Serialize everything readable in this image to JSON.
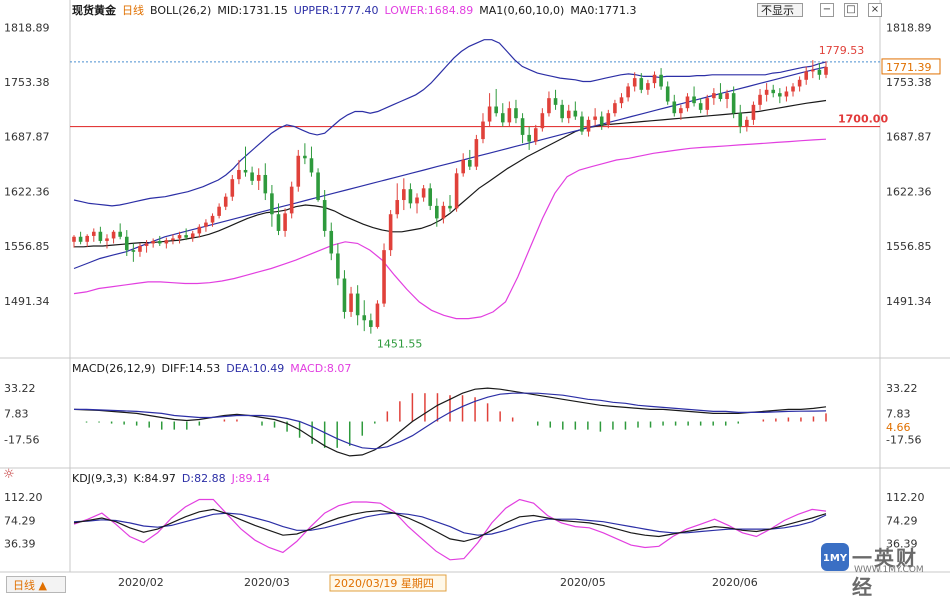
{
  "header": {
    "instrument": "现货黄金",
    "timeframe": "日线",
    "boll_label": "BOLL(26,2)",
    "mid": "MID:1731.15",
    "upper": "UPPER:1777.40",
    "lower": "LOWER:1684.89",
    "ma_label": "MA1(0,60,10,0)",
    "ma_value": "MA0:1771.3",
    "not_show": "不显示",
    "win_buttons": [
      "−",
      "□",
      "×"
    ]
  },
  "macd_header": {
    "label": "MACD(26,12,9)",
    "diff": "DIFF:14.53",
    "dea": "DEA:10.49",
    "macd": "MACD:8.07"
  },
  "kdj_header": {
    "label": "KDJ(9,3,3)",
    "k": "K:84.97",
    "d": "D:82.88",
    "j": "J:89.14"
  },
  "price_axis": {
    "ticks": [
      1818.89,
      1753.38,
      1687.87,
      1622.36,
      1556.85,
      1491.34
    ],
    "labels": [
      "1818.89",
      "1753.38",
      "1687.87",
      "1622.36",
      "1556.85",
      "1491.34"
    ]
  },
  "macd_axis": {
    "ticks": [
      33.22,
      7.83,
      -17.56
    ],
    "labels": [
      "33.22",
      "7.83",
      "-17.56"
    ],
    "value_tag": "4.66"
  },
  "kdj_axis": {
    "ticks": [
      112.2,
      74.29,
      36.39
    ],
    "labels": [
      "112.20",
      "74.29",
      "36.39"
    ],
    "value_tag": "36.39"
  },
  "annotations": {
    "high": "1779.53",
    "low": "1451.55",
    "support": "1700.00",
    "last_price": "1771.39"
  },
  "xaxis": {
    "labels": [
      "2020/02",
      "2020/03",
      "2020/05",
      "2020/06"
    ],
    "cursor_date": "2020/03/19 星期四"
  },
  "bottom_tab": {
    "label": "日线 ▲"
  },
  "logo": {
    "main": "一英财经",
    "sub": "WWW.1MY.COM",
    "badge": "1MY"
  },
  "colors": {
    "up": "#e0413a",
    "down": "#2e9a3c",
    "upper_band": "#2c2fa6",
    "lower_band": "#e23fe0",
    "mid_band": "#1a1a1a",
    "ma": "#2c2fa6",
    "support": "#e23a3a",
    "diff": "#1a1a1a",
    "dea": "#2c2fa6",
    "k": "#1a1a1a",
    "d": "#2c2fa6",
    "j": "#e23fe0"
  },
  "chart_data": {
    "type": "candlestick",
    "title": "现货黄金 日线",
    "ylim": [
      1430,
      1830
    ],
    "candles": [
      [
        1562,
        1570,
        1555,
        1568
      ],
      [
        1568,
        1574,
        1559,
        1562
      ],
      [
        1562,
        1571,
        1556,
        1569
      ],
      [
        1569,
        1578,
        1562,
        1574
      ],
      [
        1574,
        1580,
        1560,
        1563
      ],
      [
        1563,
        1571,
        1554,
        1566
      ],
      [
        1566,
        1576,
        1560,
        1574
      ],
      [
        1574,
        1584,
        1565,
        1568
      ],
      [
        1568,
        1576,
        1545,
        1552
      ],
      [
        1552,
        1560,
        1538,
        1550
      ],
      [
        1550,
        1560,
        1544,
        1557
      ],
      [
        1557,
        1564,
        1549,
        1560
      ],
      [
        1560,
        1566,
        1555,
        1563
      ],
      [
        1563,
        1569,
        1557,
        1560
      ],
      [
        1560,
        1567,
        1554,
        1564
      ],
      [
        1564,
        1571,
        1559,
        1566
      ],
      [
        1566,
        1574,
        1560,
        1570
      ],
      [
        1570,
        1578,
        1564,
        1567
      ],
      [
        1567,
        1575,
        1562,
        1572
      ],
      [
        1572,
        1583,
        1567,
        1580
      ],
      [
        1580,
        1589,
        1574,
        1585
      ],
      [
        1585,
        1596,
        1580,
        1593
      ],
      [
        1593,
        1608,
        1590,
        1604
      ],
      [
        1604,
        1620,
        1600,
        1616
      ],
      [
        1616,
        1642,
        1611,
        1637
      ],
      [
        1637,
        1660,
        1631,
        1648
      ],
      [
        1648,
        1676,
        1640,
        1645
      ],
      [
        1645,
        1652,
        1630,
        1635
      ],
      [
        1635,
        1650,
        1624,
        1642
      ],
      [
        1642,
        1656,
        1612,
        1620
      ],
      [
        1620,
        1630,
        1580,
        1595
      ],
      [
        1595,
        1608,
        1570,
        1575
      ],
      [
        1575,
        1602,
        1568,
        1596
      ],
      [
        1596,
        1634,
        1590,
        1628
      ],
      [
        1628,
        1672,
        1622,
        1665
      ],
      [
        1665,
        1680,
        1655,
        1662
      ],
      [
        1662,
        1676,
        1640,
        1645
      ],
      [
        1645,
        1650,
        1610,
        1612
      ],
      [
        1612,
        1624,
        1568,
        1575
      ],
      [
        1575,
        1585,
        1540,
        1548
      ],
      [
        1548,
        1560,
        1510,
        1518
      ],
      [
        1518,
        1528,
        1470,
        1478
      ],
      [
        1478,
        1508,
        1472,
        1500
      ],
      [
        1500,
        1510,
        1462,
        1474
      ],
      [
        1474,
        1492,
        1455,
        1468
      ],
      [
        1468,
        1476,
        1452,
        1460
      ],
      [
        1460,
        1492,
        1458,
        1488
      ],
      [
        1488,
        1560,
        1484,
        1552
      ],
      [
        1552,
        1600,
        1545,
        1595
      ],
      [
        1595,
        1632,
        1590,
        1612
      ],
      [
        1612,
        1638,
        1600,
        1625
      ],
      [
        1625,
        1632,
        1602,
        1608
      ],
      [
        1608,
        1620,
        1596,
        1615
      ],
      [
        1615,
        1630,
        1610,
        1626
      ],
      [
        1626,
        1632,
        1600,
        1605
      ],
      [
        1605,
        1614,
        1580,
        1590
      ],
      [
        1590,
        1610,
        1584,
        1605
      ],
      [
        1605,
        1618,
        1598,
        1602
      ],
      [
        1602,
        1650,
        1598,
        1644
      ],
      [
        1644,
        1668,
        1640,
        1660
      ],
      [
        1660,
        1672,
        1648,
        1652
      ],
      [
        1652,
        1690,
        1648,
        1685
      ],
      [
        1685,
        1716,
        1680,
        1706
      ],
      [
        1706,
        1740,
        1700,
        1724
      ],
      [
        1724,
        1745,
        1712,
        1716
      ],
      [
        1716,
        1728,
        1700,
        1705
      ],
      [
        1705,
        1730,
        1700,
        1722
      ],
      [
        1722,
        1732,
        1704,
        1710
      ],
      [
        1710,
        1716,
        1680,
        1690
      ],
      [
        1690,
        1700,
        1672,
        1682
      ],
      [
        1682,
        1702,
        1678,
        1698
      ],
      [
        1698,
        1722,
        1694,
        1716
      ],
      [
        1716,
        1742,
        1712,
        1734
      ],
      [
        1734,
        1744,
        1720,
        1726
      ],
      [
        1726,
        1732,
        1705,
        1710
      ],
      [
        1710,
        1726,
        1704,
        1719
      ],
      [
        1719,
        1730,
        1708,
        1712
      ],
      [
        1712,
        1718,
        1690,
        1694
      ],
      [
        1694,
        1712,
        1688,
        1708
      ],
      [
        1708,
        1722,
        1701,
        1712
      ],
      [
        1712,
        1718,
        1696,
        1702
      ],
      [
        1702,
        1720,
        1698,
        1716
      ],
      [
        1716,
        1732,
        1712,
        1728
      ],
      [
        1728,
        1740,
        1722,
        1735
      ],
      [
        1735,
        1752,
        1730,
        1748
      ],
      [
        1748,
        1765,
        1742,
        1758
      ],
      [
        1758,
        1764,
        1740,
        1744
      ],
      [
        1744,
        1756,
        1738,
        1752
      ],
      [
        1752,
        1766,
        1746,
        1762
      ],
      [
        1762,
        1770,
        1744,
        1748
      ],
      [
        1748,
        1754,
        1726,
        1730
      ],
      [
        1730,
        1738,
        1712,
        1716
      ],
      [
        1716,
        1726,
        1708,
        1722
      ],
      [
        1722,
        1740,
        1718,
        1736
      ],
      [
        1736,
        1748,
        1724,
        1728
      ],
      [
        1728,
        1734,
        1716,
        1720
      ],
      [
        1720,
        1738,
        1714,
        1734
      ],
      [
        1734,
        1746,
        1726,
        1740
      ],
      [
        1740,
        1752,
        1730,
        1733
      ],
      [
        1733,
        1744,
        1722,
        1740
      ],
      [
        1740,
        1748,
        1710,
        1716
      ],
      [
        1716,
        1726,
        1692,
        1700
      ],
      [
        1700,
        1712,
        1694,
        1708
      ],
      [
        1708,
        1730,
        1702,
        1726
      ],
      [
        1726,
        1745,
        1720,
        1738
      ],
      [
        1738,
        1752,
        1730,
        1744
      ],
      [
        1744,
        1750,
        1735,
        1740
      ],
      [
        1740,
        1746,
        1728,
        1736
      ],
      [
        1736,
        1748,
        1730,
        1742
      ],
      [
        1742,
        1752,
        1736,
        1748
      ],
      [
        1748,
        1760,
        1742,
        1756
      ],
      [
        1756,
        1772,
        1750,
        1766
      ],
      [
        1766,
        1779.53,
        1758,
        1768
      ],
      [
        1768,
        1776,
        1756,
        1762
      ],
      [
        1762,
        1778,
        1758,
        1771.39
      ]
    ],
    "upper_band": [
      1612,
      1610,
      1608,
      1607,
      1606,
      1605,
      1606,
      1608,
      1610,
      1612,
      1614,
      1615,
      1616,
      1618,
      1620,
      1622,
      1625,
      1628,
      1632,
      1636,
      1642,
      1650,
      1660,
      1668,
      1676,
      1684,
      1692,
      1698,
      1702,
      1700,
      1696,
      1692,
      1690,
      1692,
      1700,
      1708,
      1714,
      1718,
      1718,
      1716,
      1718,
      1722,
      1726,
      1730,
      1734,
      1738,
      1744,
      1752,
      1762,
      1772,
      1782,
      1790,
      1796,
      1800,
      1804,
      1804,
      1800,
      1790,
      1780,
      1772,
      1768,
      1764,
      1762,
      1760,
      1758,
      1757,
      1756,
      1754,
      1754,
      1756,
      1758,
      1760,
      1762,
      1763,
      1762,
      1760,
      1760,
      1759,
      1760,
      1760,
      1760,
      1760,
      1761,
      1761,
      1762,
      1762,
      1762,
      1762,
      1762,
      1762,
      1762,
      1762,
      1764,
      1765,
      1767,
      1769,
      1771,
      1772,
      1775,
      1777.4
    ],
    "mid_band": [
      1556,
      1556,
      1557,
      1557,
      1558,
      1559,
      1560,
      1561,
      1561,
      1562,
      1563,
      1564,
      1566,
      1568,
      1571,
      1575,
      1580,
      1585,
      1590,
      1594,
      1597,
      1598,
      1600,
      1604,
      1606,
      1605,
      1603,
      1599,
      1593,
      1588,
      1583,
      1579,
      1576,
      1574,
      1574,
      1576,
      1578,
      1582,
      1588,
      1596,
      1606,
      1616,
      1626,
      1634,
      1642,
      1650,
      1657,
      1664,
      1670,
      1676,
      1682,
      1688,
      1694,
      1698,
      1700,
      1702,
      1703,
      1704,
      1705,
      1706,
      1707,
      1708,
      1709,
      1710,
      1711,
      1712,
      1713,
      1714,
      1715,
      1716,
      1717,
      1718,
      1720,
      1722,
      1724,
      1726,
      1728,
      1729.5,
      1731.15
    ],
    "lower_band": [
      1500,
      1502,
      1506,
      1508,
      1510,
      1512,
      1514,
      1514,
      1513,
      1512,
      1512,
      1513,
      1515,
      1518,
      1522,
      1526,
      1530,
      1535,
      1540,
      1546,
      1552,
      1558,
      1562,
      1560,
      1552,
      1540,
      1522,
      1505,
      1490,
      1480,
      1474,
      1470,
      1470,
      1472,
      1478,
      1490,
      1520,
      1555,
      1590,
      1620,
      1640,
      1648,
      1652,
      1656,
      1660,
      1662,
      1665,
      1668,
      1670,
      1672,
      1674,
      1675,
      1676,
      1677,
      1678,
      1679,
      1680,
      1681,
      1682,
      1683,
      1684,
      1684.89
    ],
    "ma_line": [
      1530,
      1536,
      1542,
      1546,
      1550,
      1556,
      1562,
      1568,
      1572,
      1576,
      1580,
      1584,
      1588,
      1592,
      1596,
      1600,
      1604,
      1608,
      1612,
      1616,
      1620,
      1624,
      1628,
      1632,
      1636,
      1640,
      1644,
      1648,
      1652,
      1656,
      1660,
      1664,
      1668,
      1672,
      1676,
      1680,
      1684,
      1688,
      1692,
      1696,
      1700,
      1704,
      1708,
      1712,
      1716,
      1720,
      1724,
      1728,
      1732,
      1736,
      1740,
      1744,
      1748,
      1752,
      1756,
      1760,
      1764,
      1768,
      1771.3
    ],
    "support_level": 1700.0,
    "macd": {
      "ylim": [
        -40,
        45
      ],
      "diff": [
        12,
        11.5,
        11,
        10,
        9,
        8,
        6,
        4,
        2,
        1,
        2,
        4,
        6,
        7,
        6,
        4,
        2,
        -2,
        -8,
        -16,
        -24,
        -30,
        -34,
        -33,
        -28,
        -20,
        -10,
        0,
        8,
        16,
        22,
        28,
        32,
        33,
        32,
        30,
        28,
        26,
        24,
        22,
        20,
        18,
        16,
        15,
        14,
        13,
        12,
        12,
        11,
        10,
        9,
        8,
        8,
        8,
        9,
        10,
        11,
        12,
        12,
        13,
        14.53
      ],
      "dea": [
        12,
        12,
        11.5,
        11,
        10.5,
        10,
        9,
        8,
        6,
        5,
        4,
        4,
        5,
        6,
        6,
        6,
        5,
        3,
        0,
        -5,
        -11,
        -17,
        -22,
        -26,
        -27,
        -25,
        -20,
        -14,
        -6,
        2,
        9,
        15,
        20,
        24,
        27,
        28,
        28,
        28,
        27,
        26,
        24,
        22,
        21,
        19,
        18,
        16,
        15,
        14,
        13,
        12,
        11,
        10,
        10,
        9,
        9,
        9,
        9.5,
        10,
        10.2,
        10.3,
        10.49
      ],
      "hist": [
        0,
        -1,
        -1,
        -2,
        -3,
        -4,
        -6,
        -8,
        -8,
        -8,
        -4,
        0,
        2,
        2,
        0,
        -4,
        -6,
        -10,
        -16,
        -22,
        -26,
        -26,
        -24,
        -14,
        -2,
        10,
        20,
        28,
        28,
        28,
        26,
        26,
        24,
        18,
        10,
        4,
        0,
        -4,
        -6,
        -8,
        -8,
        -8,
        -10,
        -8,
        -8,
        -6,
        -6,
        -4,
        -4,
        -4,
        -4,
        -4,
        -4,
        -2,
        0,
        2,
        3,
        4,
        4,
        5,
        8.07
      ]
    },
    "kdj": {
      "ylim": [
        0,
        130
      ],
      "k": [
        70,
        74,
        78,
        72,
        62,
        55,
        60,
        70,
        80,
        88,
        92,
        85,
        75,
        66,
        58,
        50,
        52,
        60,
        70,
        78,
        84,
        88,
        90,
        86,
        78,
        68,
        56,
        44,
        40,
        46,
        58,
        70,
        80,
        82,
        78,
        74,
        72,
        70,
        66,
        60,
        54,
        50,
        48,
        52,
        56,
        60,
        64,
        62,
        58,
        56,
        60,
        66,
        72,
        78,
        84.97
      ],
      "d": [
        72,
        73,
        75,
        74,
        70,
        65,
        63,
        66,
        72,
        78,
        84,
        86,
        84,
        78,
        72,
        64,
        58,
        58,
        62,
        68,
        74,
        80,
        84,
        86,
        84,
        80,
        72,
        64,
        54,
        50,
        52,
        58,
        66,
        72,
        76,
        76,
        76,
        74,
        72,
        68,
        64,
        60,
        56,
        54,
        54,
        56,
        58,
        60,
        60,
        60,
        60,
        62,
        66,
        72,
        82.88
      ],
      "j": [
        68,
        76,
        86,
        68,
        48,
        38,
        54,
        78,
        96,
        108,
        108,
        84,
        60,
        42,
        30,
        22,
        40,
        64,
        86,
        98,
        104,
        104,
        102,
        88,
        64,
        44,
        24,
        10,
        12,
        38,
        70,
        94,
        108,
        102,
        82,
        70,
        64,
        62,
        54,
        44,
        34,
        30,
        32,
        48,
        60,
        68,
        76,
        66,
        54,
        48,
        60,
        74,
        84,
        92,
        89.14
      ]
    }
  }
}
